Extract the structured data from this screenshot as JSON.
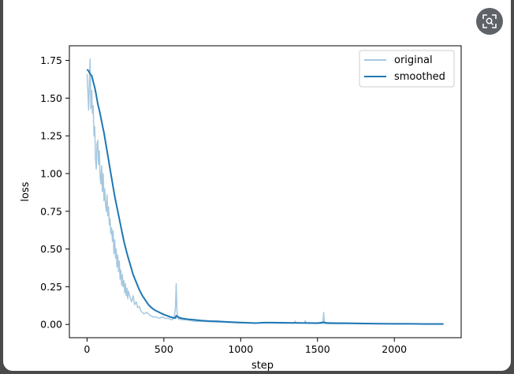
{
  "viewer": {
    "lens_icon": "image-search-icon"
  },
  "chart_data": {
    "type": "line",
    "title": "",
    "xlabel": "step",
    "ylabel": "loss",
    "xlim": [
      -115,
      2435
    ],
    "ylim": [
      -0.088,
      1.847
    ],
    "x_ticks": [
      0,
      500,
      1000,
      1500,
      2000
    ],
    "x_tick_labels": [
      "0",
      "500",
      "1000",
      "1500",
      "2000"
    ],
    "y_ticks": [
      0.0,
      0.25,
      0.5,
      0.75,
      1.0,
      1.25,
      1.5,
      1.75
    ],
    "y_tick_labels": [
      "0.00",
      "0.25",
      "0.50",
      "0.75",
      "1.00",
      "1.25",
      "1.50",
      "1.75"
    ],
    "grid": false,
    "legend": "top-right",
    "series": [
      {
        "name": "original",
        "color": "#a6c8e0",
        "x": [
          0,
          5,
          10,
          15,
          18,
          20,
          22,
          25,
          30,
          35,
          40,
          45,
          50,
          55,
          60,
          65,
          70,
          75,
          80,
          85,
          90,
          95,
          100,
          105,
          110,
          115,
          120,
          125,
          130,
          135,
          140,
          145,
          150,
          155,
          160,
          165,
          170,
          175,
          180,
          185,
          190,
          195,
          200,
          205,
          210,
          215,
          220,
          225,
          230,
          235,
          240,
          245,
          250,
          255,
          260,
          265,
          270,
          280,
          290,
          300,
          310,
          320,
          330,
          340,
          350,
          370,
          390,
          410,
          430,
          450,
          470,
          490,
          510,
          530,
          550,
          565,
          575,
          580,
          585,
          590,
          600,
          620,
          650,
          700,
          750,
          800,
          900,
          1000,
          1100,
          1200,
          1300,
          1350,
          1355,
          1360,
          1400,
          1415,
          1420,
          1425,
          1500,
          1535,
          1540,
          1545,
          1550,
          1600,
          1700,
          1800,
          1900,
          2000,
          2100,
          2200,
          2320
        ],
        "y": [
          1.66,
          1.55,
          1.42,
          1.6,
          1.7,
          1.76,
          1.62,
          1.43,
          1.55,
          1.4,
          1.45,
          1.25,
          1.31,
          1.1,
          1.03,
          1.2,
          1.22,
          1.06,
          1.15,
          0.98,
          0.93,
          1.05,
          0.88,
          1.0,
          0.82,
          0.9,
          0.8,
          0.75,
          0.86,
          0.72,
          0.78,
          0.66,
          0.7,
          0.6,
          0.64,
          0.55,
          0.62,
          0.47,
          0.56,
          0.44,
          0.5,
          0.38,
          0.46,
          0.35,
          0.42,
          0.3,
          0.36,
          0.26,
          0.33,
          0.25,
          0.29,
          0.21,
          0.27,
          0.19,
          0.24,
          0.17,
          0.22,
          0.18,
          0.15,
          0.19,
          0.13,
          0.15,
          0.11,
          0.12,
          0.09,
          0.07,
          0.08,
          0.06,
          0.05,
          0.05,
          0.04,
          0.05,
          0.04,
          0.04,
          0.03,
          0.04,
          0.1,
          0.27,
          0.1,
          0.04,
          0.035,
          0.03,
          0.03,
          0.02,
          0.02,
          0.018,
          0.014,
          0.01,
          0.01,
          0.01,
          0.008,
          0.008,
          0.022,
          0.008,
          0.008,
          0.007,
          0.025,
          0.007,
          0.006,
          0.006,
          0.08,
          0.006,
          0.005,
          0.005,
          0.005,
          0.004,
          0.004,
          0.003,
          0.003,
          0.003,
          0.003
        ]
      },
      {
        "name": "smoothed",
        "color": "#1f77b4",
        "x": [
          0,
          10,
          20,
          30,
          40,
          50,
          60,
          70,
          80,
          90,
          100,
          110,
          120,
          130,
          140,
          150,
          160,
          170,
          180,
          190,
          200,
          220,
          240,
          260,
          280,
          300,
          320,
          340,
          360,
          380,
          400,
          420,
          440,
          460,
          480,
          500,
          520,
          540,
          560,
          575,
          580,
          585,
          600,
          620,
          650,
          700,
          750,
          800,
          850,
          900,
          1000,
          1050,
          1100,
          1150,
          1200,
          1300,
          1400,
          1500,
          1540,
          1560,
          1600,
          1700,
          1800,
          1900,
          2000,
          2100,
          2200,
          2320
        ],
        "y": [
          1.69,
          1.68,
          1.66,
          1.65,
          1.61,
          1.57,
          1.52,
          1.46,
          1.42,
          1.37,
          1.32,
          1.27,
          1.21,
          1.15,
          1.09,
          1.03,
          0.97,
          0.91,
          0.85,
          0.8,
          0.75,
          0.65,
          0.55,
          0.47,
          0.4,
          0.33,
          0.28,
          0.23,
          0.19,
          0.16,
          0.13,
          0.11,
          0.095,
          0.085,
          0.075,
          0.065,
          0.058,
          0.05,
          0.045,
          0.042,
          0.058,
          0.055,
          0.045,
          0.04,
          0.035,
          0.03,
          0.025,
          0.022,
          0.02,
          0.017,
          0.013,
          0.011,
          0.009,
          0.012,
          0.012,
          0.011,
          0.01,
          0.009,
          0.014,
          0.01,
          0.009,
          0.008,
          0.006,
          0.005,
          0.004,
          0.004,
          0.003,
          0.003
        ]
      }
    ]
  }
}
